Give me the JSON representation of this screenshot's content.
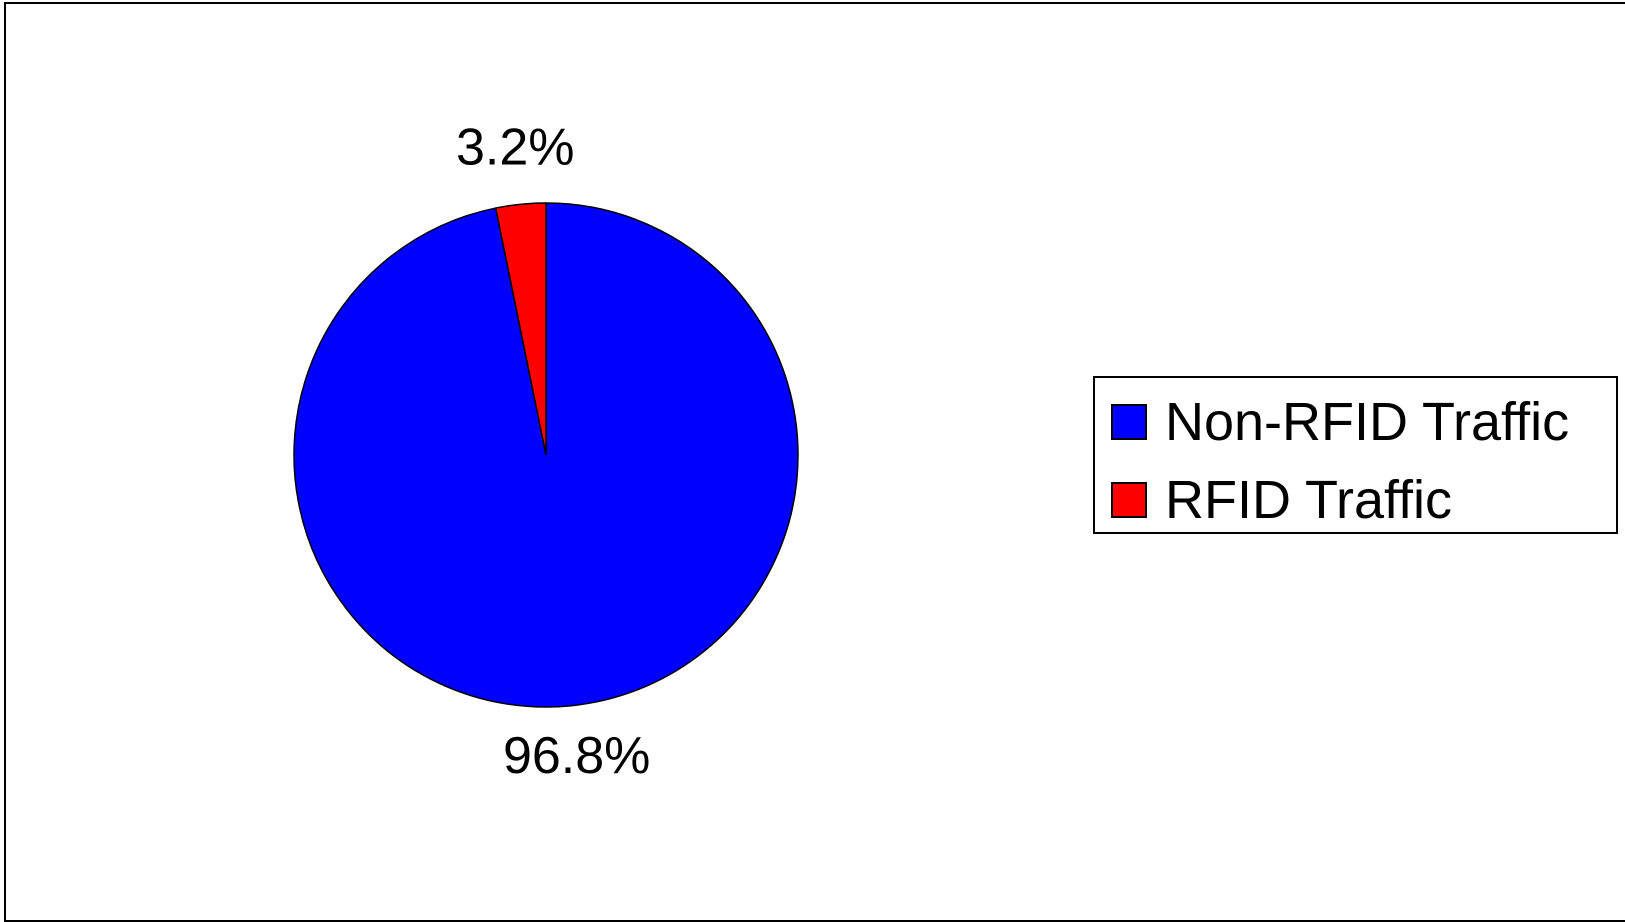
{
  "chart_data": {
    "type": "pie",
    "title": "",
    "slices": [
      {
        "label": "Non-RFID Traffic",
        "value": 96.8,
        "value_label": "96.8%",
        "color": "#0000ff"
      },
      {
        "label": "RFID Traffic",
        "value": 3.2,
        "value_label": "3.2%",
        "color": "#ff0000"
      }
    ],
    "legend_position": "right",
    "start_angle_deg": 0,
    "direction": "clockwise-from-top"
  }
}
